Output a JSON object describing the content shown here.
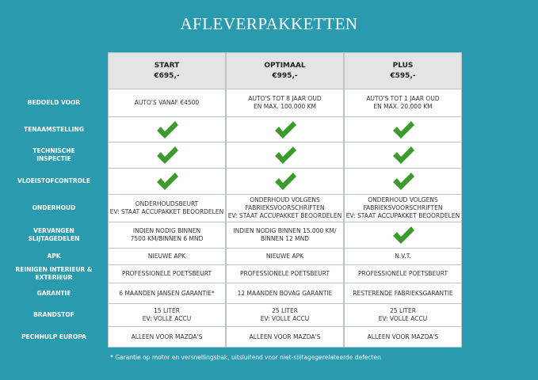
{
  "title": "AFLEVERPAKKETTEN",
  "columns": [
    {
      "name": "START",
      "price": "€695,-"
    },
    {
      "name": "OPTIMAAL",
      "price": "€995,-"
    },
    {
      "name": "PLUS",
      "price": "€595,-"
    }
  ],
  "rows": [
    {
      "label": [
        "BEDOELD VOOR"
      ],
      "cells": [
        [
          "AUTO'S VANAF €4500"
        ],
        [
          "AUTO'S TOT 8 JAAR OUD",
          "EN MAX. 100.000 KM"
        ],
        [
          "AUTO'S TOT 1 JAAR OUD",
          "EN MAX. 20.000 KM"
        ]
      ]
    },
    {
      "label": [
        "TENAAMSTELLING"
      ],
      "cells": [
        null,
        null,
        null
      ]
    },
    {
      "label": [
        "TECHNISCHE",
        "INSPECTIE"
      ],
      "cells": [
        null,
        null,
        null
      ]
    },
    {
      "label": [
        "VLOEISTOFCONTROLE"
      ],
      "cells": [
        null,
        null,
        null
      ]
    },
    {
      "label": [
        "ONDERHOUD"
      ],
      "cells": [
        [
          "ONDERHOUDSBEURT",
          "EV: STAAT ACCUPAKKET BEOORDELEN"
        ],
        [
          "ONDERHOUD VOLGENS",
          "FABRIEKSVOORSCHRIFTEN",
          "EV: STAAT ACCUPAKKET BEOORDELEN"
        ],
        [
          "ONDERHOUD VOLGENS",
          "FABRIEKSVOORSCHRIFTEN",
          "EV: STAAT ACCUPAKKET BEOORDELEN"
        ]
      ]
    },
    {
      "label": [
        "VERVANGEN",
        "SLIJTAGEDELEN"
      ],
      "cells": [
        [
          "INDIEN NODIG BINNEN",
          "7500 KM/BINNEN 6 MND"
        ],
        [
          "INDIEN NODIG BINNEN 15.000 KM/",
          "BINNEN 12 MND"
        ],
        null
      ]
    },
    {
      "label": [
        "APK"
      ],
      "cells": [
        [
          "NIEUWE APK"
        ],
        [
          "NIEUWE APK"
        ],
        [
          "N.V.T."
        ]
      ]
    },
    {
      "label": [
        "REINIGEN INTERIEUR &",
        "EXTERIEUR"
      ],
      "cells": [
        [
          "PROFESSIONELE POETSBEURT"
        ],
        [
          "PROFESSIONELE POETSBEURT"
        ],
        [
          "PROFESSIONELE POETSBEURT"
        ]
      ]
    },
    {
      "label": [
        "GARANTIE"
      ],
      "cells": [
        [
          "6 MAANDEN JANSEN GARANTIE*"
        ],
        [
          "12 MAANDEN BOVAG GARANTIE"
        ],
        [
          "RESTERENDE FABRIEKSGARANTIE"
        ]
      ]
    },
    {
      "label": [
        "BRANDSTOF"
      ],
      "cells": [
        [
          "15 LITER",
          "EV: VOLLE ACCU"
        ],
        [
          "25 LITER",
          "EV: VOLLE ACCU"
        ],
        [
          "25 LITER",
          "EV: VOLLE ACCU"
        ]
      ]
    },
    {
      "label": [
        "PECHHULP EUROPA"
      ],
      "cells": [
        [
          "ALLEEN VOOR MAZDA'S"
        ],
        [
          "ALLEEN VOOR MAZDA'S"
        ],
        [
          "ALLEEN VOOR MAZDA'S"
        ]
      ]
    }
  ],
  "footnote": "* Garantie op motor en versnellingsbak, uitsluitend voor niet-slijtagegerelateerde defecten"
}
